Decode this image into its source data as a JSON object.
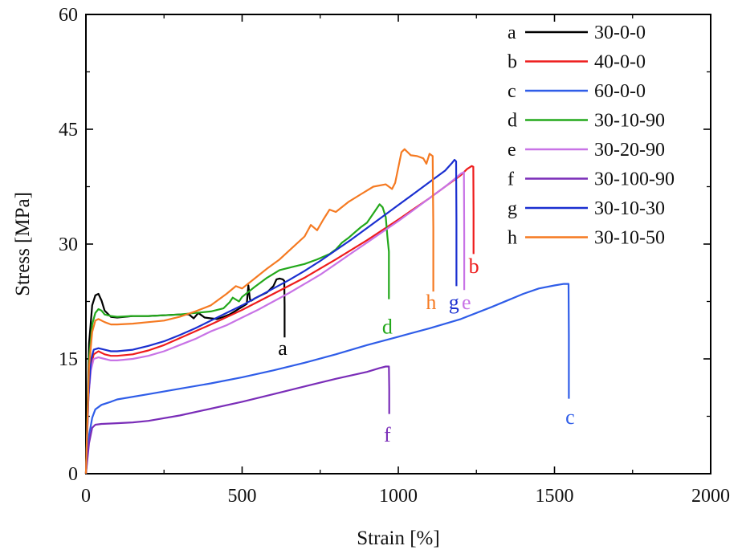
{
  "chart_data": {
    "type": "line",
    "title": "",
    "xlabel": "Strain [%]",
    "ylabel": "Stress [MPa]",
    "xlim": [
      0,
      2000
    ],
    "ylim": [
      0,
      60
    ],
    "xticks": [
      0,
      500,
      1000,
      1500,
      2000
    ],
    "yticks": [
      0,
      15,
      30,
      45,
      60
    ],
    "xtick_labels": [
      "0",
      "500",
      "1000",
      "1500",
      "2000"
    ],
    "ytick_labels": [
      "0",
      "15",
      "30",
      "45",
      "60"
    ],
    "grid": false,
    "legend_position": "top-right",
    "series": [
      {
        "letter": "a",
        "name": "30-0-0",
        "color": "#000000",
        "x": [
          0,
          10,
          20,
          30,
          40,
          50,
          60,
          80,
          100,
          150,
          200,
          250,
          300,
          330,
          345,
          360,
          380,
          400,
          420,
          440,
          460,
          480,
          500,
          515,
          520,
          525,
          530,
          540,
          560,
          580,
          600,
          610,
          620,
          630,
          635,
          636,
          636
        ],
        "y": [
          0,
          17,
          22,
          23.3,
          23.5,
          22.6,
          21.3,
          20.5,
          20.4,
          20.6,
          20.6,
          20.7,
          20.8,
          20.8,
          20.3,
          21,
          20.4,
          20.3,
          20.2,
          20.5,
          20.8,
          21.3,
          21.8,
          22.2,
          24.6,
          22.8,
          22.6,
          22.9,
          23.3,
          23.7,
          24.5,
          25.4,
          25.5,
          25.4,
          25.2,
          22,
          17.8
        ],
        "label_at": [
          630,
          15.5
        ]
      },
      {
        "letter": "b",
        "name": "40-0-0",
        "color": "#ee1c1c",
        "x": [
          0,
          8,
          16,
          25,
          40,
          60,
          80,
          100,
          150,
          200,
          250,
          300,
          400,
          500,
          600,
          700,
          800,
          900,
          1000,
          1100,
          1150,
          1200,
          1220,
          1235,
          1240,
          1241,
          1241
        ],
        "y": [
          0,
          10,
          14,
          15.6,
          16,
          15.6,
          15.4,
          15.4,
          15.6,
          16.1,
          16.8,
          17.7,
          19.5,
          21.4,
          23.5,
          25.6,
          28,
          30.5,
          33.2,
          36,
          37.5,
          39,
          39.8,
          40.2,
          40.1,
          34,
          28.7
        ],
        "label_at": [
          1242,
          26.2
        ]
      },
      {
        "letter": "c",
        "name": "60-0-0",
        "color": "#2f5de8",
        "x": [
          0,
          10,
          20,
          30,
          50,
          80,
          100,
          200,
          300,
          400,
          500,
          600,
          700,
          800,
          900,
          1000,
          1100,
          1200,
          1300,
          1400,
          1450,
          1500,
          1530,
          1545,
          1546,
          1546
        ],
        "y": [
          0,
          5,
          7.3,
          8.4,
          9,
          9.4,
          9.7,
          10.4,
          11.1,
          11.8,
          12.6,
          13.5,
          14.5,
          15.6,
          16.8,
          17.9,
          19,
          20.2,
          21.8,
          23.5,
          24.2,
          24.6,
          24.8,
          24.8,
          18,
          9.8
        ],
        "label_at": [
          1550,
          6.5
        ]
      },
      {
        "letter": "d",
        "name": "30-10-90",
        "color": "#23a81b",
        "x": [
          0,
          10,
          20,
          30,
          40,
          50,
          60,
          80,
          100,
          150,
          200,
          250,
          300,
          350,
          400,
          440,
          460,
          470,
          490,
          500,
          540,
          580,
          620,
          660,
          700,
          740,
          780,
          800,
          820,
          840,
          860,
          880,
          900,
          920,
          940,
          950,
          960,
          965,
          970,
          970,
          970
        ],
        "y": [
          0,
          15,
          19.5,
          21,
          21.5,
          21.3,
          20.8,
          20.6,
          20.5,
          20.6,
          20.6,
          20.7,
          20.8,
          21,
          21.2,
          21.6,
          22.4,
          23,
          22.5,
          23.1,
          24.4,
          25.6,
          26.6,
          27,
          27.4,
          28,
          28.7,
          29.3,
          30.2,
          30.8,
          31.5,
          32.2,
          32.8,
          34,
          35.2,
          34.8,
          33.5,
          31,
          29,
          26,
          22.8
        ],
        "label_at": [
          965,
          18.3
        ]
      },
      {
        "letter": "e",
        "name": "30-20-90",
        "color": "#c873e6",
        "x": [
          0,
          8,
          16,
          25,
          40,
          60,
          80,
          100,
          150,
          200,
          250,
          300,
          350,
          400,
          450,
          500,
          550,
          600,
          650,
          700,
          750,
          800,
          850,
          900,
          950,
          1000,
          1050,
          1100,
          1150,
          1180,
          1200,
          1210,
          1211,
          1211
        ],
        "y": [
          0,
          10,
          13.5,
          15,
          15.2,
          15,
          14.8,
          14.8,
          15,
          15.4,
          16,
          16.8,
          17.6,
          18.6,
          19.4,
          20.4,
          21.4,
          22.5,
          23.6,
          24.8,
          26,
          27.4,
          28.8,
          30.2,
          31.6,
          33,
          34.5,
          36,
          37.5,
          38.5,
          39.2,
          39.4,
          31,
          24
        ],
        "label_at": [
          1218,
          21.5
        ]
      },
      {
        "letter": "f",
        "name": "30-100-90",
        "color": "#7a2db8",
        "x": [
          0,
          10,
          20,
          30,
          50,
          100,
          150,
          200,
          300,
          400,
          500,
          600,
          700,
          800,
          900,
          940,
          960,
          970,
          971,
          971
        ],
        "y": [
          0,
          4,
          6,
          6.4,
          6.5,
          6.6,
          6.7,
          6.9,
          7.6,
          8.5,
          9.4,
          10.4,
          11.4,
          12.4,
          13.3,
          13.8,
          14,
          14,
          11,
          7.8
        ],
        "label_at": [
          965,
          4.2
        ]
      },
      {
        "letter": "g",
        "name": "30-10-30",
        "color": "#1a2fd0",
        "x": [
          0,
          8,
          16,
          25,
          40,
          60,
          80,
          100,
          150,
          200,
          250,
          300,
          350,
          400,
          450,
          500,
          550,
          600,
          650,
          700,
          750,
          800,
          850,
          900,
          950,
          1000,
          1050,
          1100,
          1150,
          1170,
          1180,
          1185,
          1186,
          1186
        ],
        "y": [
          0,
          10,
          14.8,
          16.2,
          16.4,
          16.2,
          16,
          16,
          16.2,
          16.7,
          17.3,
          18.1,
          19,
          20,
          21,
          22,
          23.1,
          24.2,
          25.3,
          26.5,
          27.8,
          29.2,
          30.6,
          32.1,
          33.6,
          35.1,
          36.6,
          38.1,
          39.6,
          40.5,
          41,
          40.8,
          33,
          24.5
        ],
        "label_at": [
          1178,
          21.5
        ]
      },
      {
        "letter": "h",
        "name": "30-10-50",
        "color": "#f57a22",
        "x": [
          0,
          10,
          20,
          30,
          40,
          50,
          60,
          80,
          100,
          150,
          200,
          250,
          300,
          350,
          400,
          450,
          480,
          500,
          540,
          580,
          620,
          660,
          700,
          720,
          740,
          760,
          780,
          800,
          840,
          880,
          920,
          960,
          980,
          990,
          1000,
          1010,
          1020,
          1040,
          1060,
          1080,
          1090,
          1100,
          1110,
          1112,
          1112
        ],
        "y": [
          0,
          14,
          18.5,
          20,
          20.2,
          20,
          19.8,
          19.5,
          19.5,
          19.6,
          19.8,
          20,
          20.5,
          21.2,
          22,
          23.5,
          24.5,
          24.2,
          25.5,
          26.8,
          28,
          29.5,
          31,
          32.5,
          31.8,
          33.2,
          34.5,
          34.2,
          35.5,
          36.5,
          37.5,
          37.8,
          37.2,
          38,
          40,
          42,
          42.4,
          41.6,
          41.5,
          41.2,
          40.5,
          41.8,
          41.5,
          32,
          23.8
        ],
        "label_at": [
          1105,
          21.5
        ]
      }
    ]
  }
}
